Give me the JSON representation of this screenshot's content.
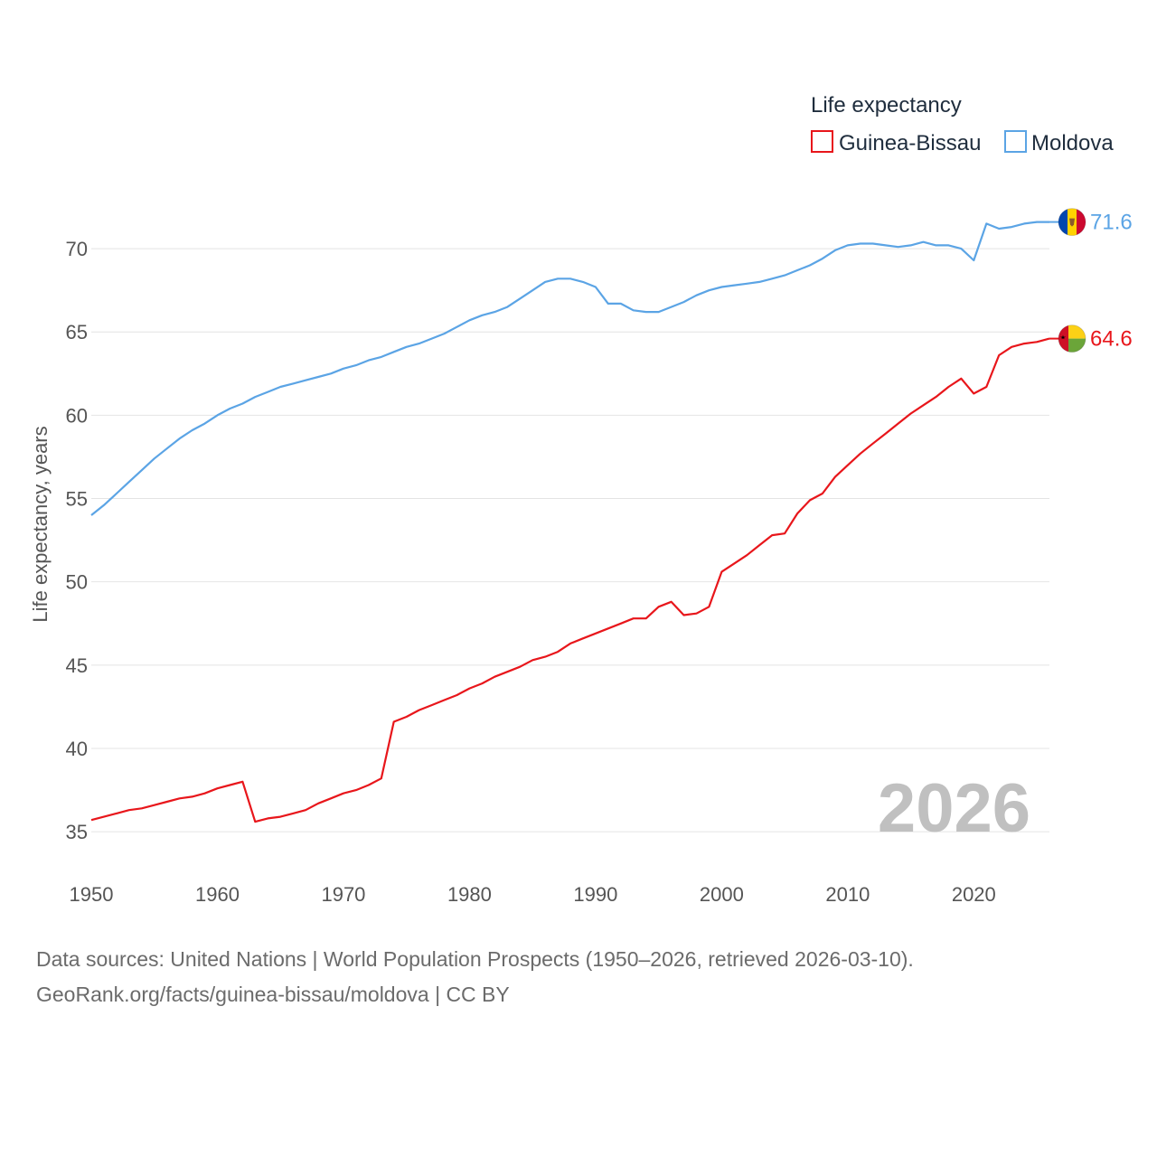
{
  "chart_data": {
    "type": "line",
    "title": "Life expectancy",
    "ylabel": "Life expectancy, years",
    "xlabel": "",
    "xlim": [
      1950,
      2026
    ],
    "ylim": [
      33,
      72.5
    ],
    "xticks": [
      1950,
      1960,
      1970,
      1980,
      1990,
      2000,
      2010,
      2020
    ],
    "yticks": [
      35,
      40,
      45,
      50,
      55,
      60,
      65,
      70
    ],
    "year_label": "2026",
    "legend_position": "top-right",
    "x": [
      1950,
      1951,
      1952,
      1953,
      1954,
      1955,
      1956,
      1957,
      1958,
      1959,
      1960,
      1961,
      1962,
      1963,
      1964,
      1965,
      1966,
      1967,
      1968,
      1969,
      1970,
      1971,
      1972,
      1973,
      1974,
      1975,
      1976,
      1977,
      1978,
      1979,
      1980,
      1981,
      1982,
      1983,
      1984,
      1985,
      1986,
      1987,
      1988,
      1989,
      1990,
      1991,
      1992,
      1993,
      1994,
      1995,
      1996,
      1997,
      1998,
      1999,
      2000,
      2001,
      2002,
      2003,
      2004,
      2005,
      2006,
      2007,
      2008,
      2009,
      2010,
      2011,
      2012,
      2013,
      2014,
      2015,
      2016,
      2017,
      2018,
      2019,
      2020,
      2021,
      2022,
      2023,
      2024,
      2025,
      2026
    ],
    "series": [
      {
        "name": "Guinea-Bissau",
        "color": "#e8161b",
        "end_label": "64.6",
        "values": [
          35.7,
          35.9,
          36.1,
          36.3,
          36.4,
          36.6,
          36.8,
          37.0,
          37.1,
          37.3,
          37.6,
          37.8,
          38.0,
          35.6,
          35.8,
          35.9,
          36.1,
          36.3,
          36.7,
          37.0,
          37.3,
          37.5,
          37.8,
          38.2,
          41.6,
          41.9,
          42.3,
          42.6,
          42.9,
          43.2,
          43.6,
          43.9,
          44.3,
          44.6,
          44.9,
          45.3,
          45.5,
          45.8,
          46.3,
          46.6,
          46.9,
          47.2,
          47.5,
          47.8,
          47.8,
          48.5,
          48.8,
          48.0,
          48.1,
          48.5,
          50.6,
          51.1,
          51.6,
          52.2,
          52.8,
          52.9,
          54.1,
          54.9,
          55.3,
          56.3,
          57.0,
          57.7,
          58.3,
          58.9,
          59.5,
          60.1,
          60.6,
          61.1,
          61.7,
          62.2,
          61.3,
          61.7,
          63.6,
          64.1,
          64.3,
          64.4,
          64.6
        ]
      },
      {
        "name": "Moldova",
        "color": "#5ba4e5",
        "end_label": "71.6",
        "values": [
          54.0,
          54.6,
          55.3,
          56.0,
          56.7,
          57.4,
          58.0,
          58.6,
          59.1,
          59.5,
          60.0,
          60.4,
          60.7,
          61.1,
          61.4,
          61.7,
          61.9,
          62.1,
          62.3,
          62.5,
          62.8,
          63.0,
          63.3,
          63.5,
          63.8,
          64.1,
          64.3,
          64.6,
          64.9,
          65.3,
          65.7,
          66.0,
          66.2,
          66.5,
          67.0,
          67.5,
          68.0,
          68.2,
          68.2,
          68.0,
          67.7,
          66.7,
          66.7,
          66.3,
          66.2,
          66.2,
          66.5,
          66.8,
          67.2,
          67.5,
          67.7,
          67.8,
          67.9,
          68.0,
          68.2,
          68.4,
          68.7,
          69.0,
          69.4,
          69.9,
          70.2,
          70.3,
          70.3,
          70.2,
          70.1,
          70.2,
          70.4,
          70.2,
          70.2,
          70.0,
          69.3,
          71.5,
          71.2,
          71.3,
          71.5,
          71.6,
          71.6
        ]
      }
    ]
  },
  "footer": {
    "source_line": "Data sources: United Nations | World Population Prospects (1950–2026, retrieved 2026-03-10).",
    "url_line": "GeoRank.org/facts/guinea-bissau/moldova | CC BY"
  }
}
